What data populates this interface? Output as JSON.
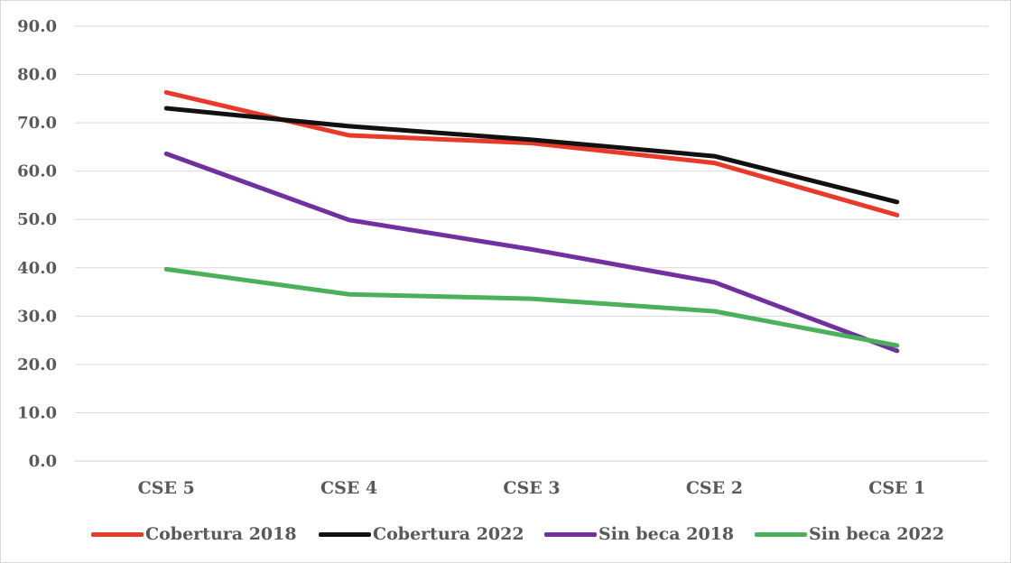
{
  "chart_data": {
    "type": "line",
    "categories": [
      "CSE 5",
      "CSE 4",
      "CSE 3",
      "CSE 2",
      "CSE 1"
    ],
    "yticks": [
      "0.0",
      "10.0",
      "20.0",
      "30.0",
      "40.0",
      "50.0",
      "60.0",
      "70.0",
      "80.0",
      "90.0"
    ],
    "ylim": [
      0,
      90
    ],
    "grid": true,
    "legend_position": "bottom",
    "series": [
      {
        "name": "Cobertura 2018",
        "color": "#e8392a",
        "values": [
          76.3,
          67.4,
          65.8,
          61.7,
          50.9
        ]
      },
      {
        "name": "Cobertura 2022",
        "color": "#111111",
        "values": [
          73.0,
          69.3,
          66.5,
          63.1,
          53.6
        ]
      },
      {
        "name": "Sin beca 2018",
        "color": "#7030a0",
        "values": [
          63.6,
          49.9,
          43.8,
          37.0,
          22.8
        ]
      },
      {
        "name": "Sin beca 2022",
        "color": "#4caf59",
        "values": [
          39.7,
          34.5,
          33.6,
          31.0,
          23.9
        ]
      }
    ]
  }
}
